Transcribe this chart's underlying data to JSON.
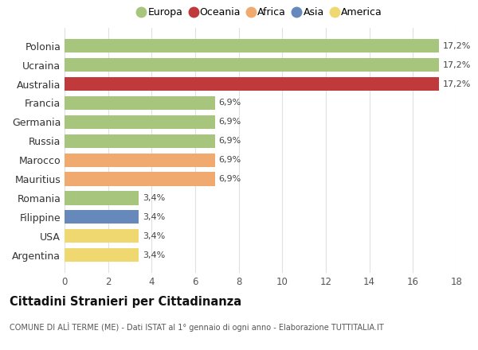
{
  "categories": [
    "Polonia",
    "Ucraina",
    "Australia",
    "Francia",
    "Germania",
    "Russia",
    "Marocco",
    "Mauritius",
    "Romania",
    "Filippine",
    "USA",
    "Argentina"
  ],
  "values": [
    17.2,
    17.2,
    17.2,
    6.9,
    6.9,
    6.9,
    6.9,
    6.9,
    3.4,
    3.4,
    3.4,
    3.4
  ],
  "labels": [
    "17,2%",
    "17,2%",
    "17,2%",
    "6,9%",
    "6,9%",
    "6,9%",
    "6,9%",
    "6,9%",
    "3,4%",
    "3,4%",
    "3,4%",
    "3,4%"
  ],
  "colors": [
    "#a8c57e",
    "#a8c57e",
    "#c0393b",
    "#a8c57e",
    "#a8c57e",
    "#a8c57e",
    "#f0aa70",
    "#f0aa70",
    "#a8c57e",
    "#6688bb",
    "#f0d870",
    "#f0d870"
  ],
  "legend": [
    {
      "label": "Europa",
      "color": "#a8c57e"
    },
    {
      "label": "Oceania",
      "color": "#c0393b"
    },
    {
      "label": "Africa",
      "color": "#f0aa70"
    },
    {
      "label": "Asia",
      "color": "#6688bb"
    },
    {
      "label": "America",
      "color": "#f0d870"
    }
  ],
  "xlim": [
    0,
    18
  ],
  "xticks": [
    0,
    2,
    4,
    6,
    8,
    10,
    12,
    14,
    16,
    18
  ],
  "title": "Cittadini Stranieri per Cittadinanza",
  "subtitle": "COMUNE DI ALÌ TERME (ME) - Dati ISTAT al 1° gennaio di ogni anno - Elaborazione TUTTITALIA.IT",
  "background_color": "#ffffff",
  "grid_color": "#e0e0e0"
}
